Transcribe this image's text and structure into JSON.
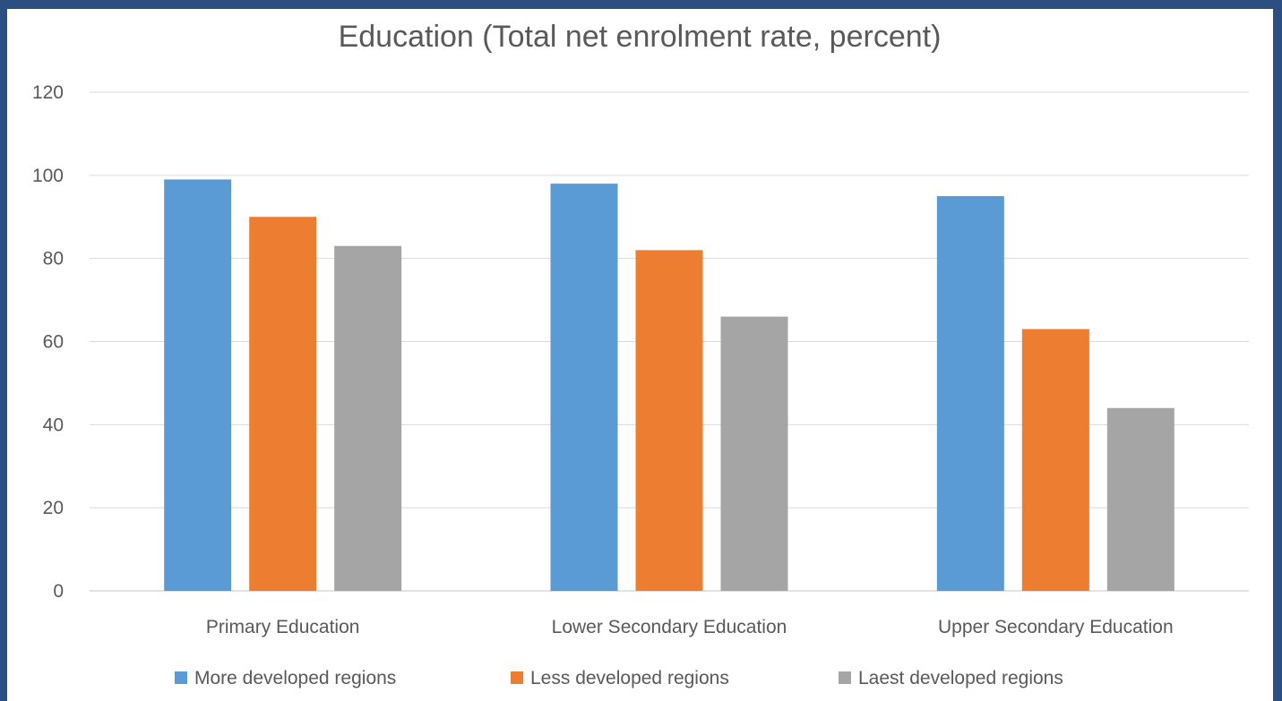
{
  "chart_data": {
    "type": "bar",
    "title": "Education (Total net enrolment rate, percent)",
    "xlabel": "",
    "ylabel": "",
    "categories": [
      "Primary Education",
      "Lower Secondary Education",
      "Upper Secondary Education"
    ],
    "series": [
      {
        "name": "More developed regions",
        "values": [
          99,
          98,
          95
        ],
        "color": "#5b9bd5"
      },
      {
        "name": "Less developed regions",
        "values": [
          90,
          82,
          63
        ],
        "color": "#ed7d31"
      },
      {
        "name": "Laest developed regions",
        "values": [
          83,
          66,
          44
        ],
        "color": "#a5a5a5"
      }
    ],
    "ylim": [
      0,
      120
    ],
    "yticks": [
      0,
      20,
      40,
      60,
      80,
      100,
      120
    ],
    "grid": true,
    "legend_position": "bottom"
  },
  "colors": {
    "frame_border": "#2b4f80",
    "gridline": "#d9d9d9",
    "text": "#595959"
  }
}
